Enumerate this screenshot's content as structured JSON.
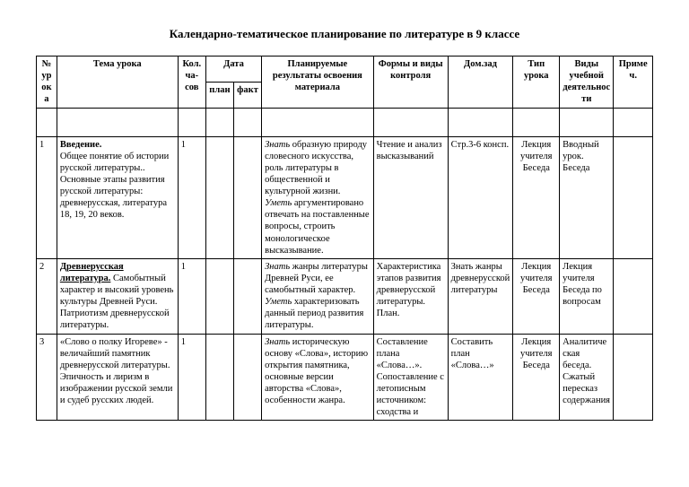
{
  "title": "Календарно-тематическое планирование по литературе в  9 классе",
  "headers": {
    "num": "№ урока",
    "topic": "Тема урока",
    "hours": "Кол.ча-сов",
    "date": "Дата",
    "date_plan": "план",
    "date_fact": "факт",
    "results": "Планируемые результаты  освоения материала",
    "forms": "Формы и виды контроля",
    "homework": "Дом.зад",
    "type": "Тип урока",
    "activity": "Виды учебной деятельности",
    "note": "Примеч."
  },
  "rows": [
    {
      "num": "1",
      "topic_bold": "Введение.",
      "topic_rest": "Общее понятие об истории русской литературы.. Основные этапы развития русской литературы: древнерусская, литература 18, 19, 20 веков.",
      "hours": "1",
      "plan": "",
      "fact": "",
      "results_html": "<span class=\"italic\">Знать</span> образную природу словесного искусства, роль литературы в общественной и культурной жизни.<br><span class=\"italic\">Уметь</span> аргументировано отвечать на поставленные вопросы, строить монологическое высказывание.",
      "forms": "Чтение и анализ высказываний",
      "homework": "Стр.3-6 консп.",
      "type": "Лекция учителя Беседа",
      "activity": "Вводный урок.\n   Беседа",
      "note": ""
    },
    {
      "num": "2",
      "topic_underline": "Древнерусская литература.",
      "topic_rest": "Самобытный характер и высокий уровень культуры Древней Руси. Патриотизм древнерусской литературы.",
      "hours": "1",
      "plan": "",
      "fact": "",
      "results_html": "<span class=\"italic\">Знать</span> жанры литературы Древней Руси, ее самобытный характер.<br><span class=\"italic\">Уметь</span> характеризовать данный период развития литературы.",
      "forms": "Характеристика этапов развития древнерусской литературы. План.",
      "homework": "Знать жанры древнерусской литературы",
      "type": "Лекция учителя Беседа",
      "activity": "Лекция учителя Беседа по вопросам",
      "note": ""
    },
    {
      "num": "3",
      "topic_rest": "«Слово о полку Игореве» - величайший памятник древнерусской литературы. Эпичность и лиризм в изображении русской земли и судеб русских людей.",
      "hours": "1",
      "plan": "",
      "fact": "",
      "results_html": "<span class=\"italic\">Знать</span> историческую основу «Слова», историю открытия памятника, основные версии авторства «Слова», особенности жанра.",
      "forms": "Составление плана «Слова…». Сопоставление с летописным источником: сходства и",
      "homework": "Составить план «Слова…»",
      "type": "Лекция учителя Беседа",
      "activity": "Аналитическая беседа.\n  Сжатый пересказ содержания",
      "note": ""
    }
  ]
}
